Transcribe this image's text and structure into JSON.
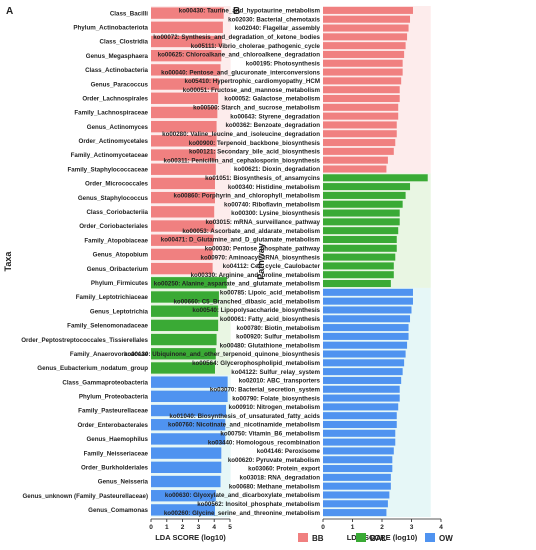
{
  "colors": {
    "BB": "#f08080",
    "BAL": "#3aaa35",
    "OW": "#4f93f0",
    "BB_bg": "#fdecec",
    "BAL_bg": "#e9f6e3",
    "OW_bg": "#e6f7f7",
    "axis": "#222222"
  },
  "legend": [
    {
      "name": "BB",
      "color": "#f08080"
    },
    {
      "name": "BAL",
      "color": "#3aaa35"
    },
    {
      "name": "OW",
      "color": "#4f93f0"
    }
  ],
  "chart_data": [
    {
      "panel_label": "A",
      "type": "bar",
      "orientation": "horizontal",
      "ylabel": "Taxa",
      "xlabel": "LDA SCORE (log10)",
      "xlim": [
        0,
        5
      ],
      "xticks": [
        "0",
        "1",
        "2",
        "3",
        "4",
        "5"
      ],
      "categories": [
        "Class_Bacilli",
        "Phylum_Actinobacteriota",
        "Class_Clostridia",
        "Genus_Megasphaera",
        "Class_Actinobacteria",
        "Genus_Paracoccus",
        "Order_Lachnospirales",
        "Family_Lachnospiraceae",
        "Genus_Actinomyces",
        "Order_Actinomycetales",
        "Family_Actinomycetaceae",
        "Family_Staphylococcaceae",
        "Order_Micrococcales",
        "Genus_Staphylococcus",
        "Class_Coriobacteriia",
        "Order_Coriobacteriales",
        "Family_Atopobiaceae",
        "Genus_Atopobium",
        "Genus_Oribacterium",
        "Phylum_Firmicutes",
        "Family_Leptotrichiaceae",
        "Genus_Leptotrichia",
        "Family_Selenomonadaceae",
        "Order_Peptostreptococcales_Tissierellales",
        "Family_Anaerovoracaceae",
        "Genus_Eubacterium_nodatum_group",
        "Class_Gammaproteobacteria",
        "Phylum_Proteobacteria",
        "Family_Pasteurellaceae",
        "Order_Enterobacterales",
        "Genus_Haemophilus",
        "Family_Neisseriaceae",
        "Order_Burkholderiales",
        "Genus_Neisseria",
        "Genus_unknown (Family_Pasteurellaceae)",
        "Genus_Comamonas"
      ],
      "groups": [
        "BB",
        "BB",
        "BB",
        "BB",
        "BB",
        "BB",
        "BB",
        "BB",
        "BB",
        "BB",
        "BB",
        "BB",
        "BB",
        "BB",
        "BB",
        "BB",
        "BB",
        "BB",
        "BB",
        "BAL",
        "BAL",
        "BAL",
        "BAL",
        "BAL",
        "BAL",
        "BAL",
        "OW",
        "OW",
        "OW",
        "OW",
        "OW",
        "OW",
        "OW",
        "OW",
        "OW",
        "OW"
      ],
      "values": [
        4.6,
        4.55,
        4.5,
        4.45,
        4.4,
        4.3,
        4.25,
        4.2,
        4.15,
        4.15,
        4.1,
        4.1,
        4.05,
        4.05,
        4.0,
        4.0,
        3.95,
        3.9,
        3.9,
        4.8,
        4.3,
        4.25,
        4.25,
        4.15,
        4.1,
        4.05,
        4.85,
        4.85,
        4.75,
        4.7,
        4.7,
        4.45,
        4.45,
        4.4,
        4.1,
        4.05
      ]
    },
    {
      "panel_label": "B",
      "type": "bar",
      "orientation": "horizontal",
      "ylabel": "Pathway",
      "xlabel": "LDA SCORE (log10)",
      "xlim": [
        0,
        4
      ],
      "xticks": [
        "0",
        "1",
        "2",
        "3",
        "4"
      ],
      "categories": [
        "ko00430: Taurine_and_hypotaurine_metabolism",
        "ko02030: Bacterial_chemotaxis",
        "ko02040: Flagellar_assembly",
        "ko00072: Synthesis_and_degradation_of_ketone_bodies",
        "ko05111: Vibrio_cholerae_pathogenic_cycle",
        "ko00625: Chloroalkane_and_chloroalkene_degradation",
        "ko00195: Photosynthesis",
        "ko00040: Pentose_and_glucuronate_interconversions",
        "ko05410: Hypertrophic_cardiomyopathy_HCM",
        "ko00051: Fructose_and_mannose_metabolism",
        "ko00052: Galactose_metabolism",
        "ko00500: Starch_and_sucrose_metabolism",
        "ko00643: Styrene_degradation",
        "ko00362: Benzoate_degradation",
        "ko00280: Valine_leucine_and_isoleucine_degradation",
        "ko00900: Terpenoid_backbone_biosynthesis",
        "ko00121: Secondary_bile_acid_biosynthesis",
        "ko00311: Penicillin_and_cephalosporin_biosynthesis",
        "ko00621: Dioxin_degradation",
        "ko01051: Biosynthesis_of_ansamycins",
        "ko00340: Histidine_metabolism",
        "ko00860: Porphyrin_and_chlorophyll_metabolism",
        "ko00740: Riboflavin_metabolism",
        "ko00300: Lysine_biosynthesis",
        "ko03015: mRNA_surveillance_pathway",
        "ko00053: Ascorbate_and_aldarate_metabolism",
        "ko00471: D_Glutamine_and_D_glutamate_metabolism",
        "ko00030: Pentose_phosphate_pathway",
        "ko00970: Aminoacyl_tRNA_biosynthesis",
        "ko04112: Cell_cycle_Caulobacter",
        "ko00330: Arginine_and_proline_metabolism",
        "ko00250: Alanine_aspartate_and_glutamate_metabolism",
        "ko00785: Lipoic_acid_metabolism",
        "ko00660: C5_Branched_dibasic_acid_metabolism",
        "ko00540: Lipopolysaccharide_biosynthesis",
        "ko00061: Fatty_acid_biosynthesis",
        "ko00780: Biotin_metabolism",
        "ko00920: Sulfur_metabolism",
        "ko00480: Glutathione_metabolism",
        "ko00130: Ubiquinone_and_other_terpenoid_quinone_biosynthesis",
        "ko00564: Glycerophospholipid_metabolism",
        "ko04122: Sulfur_relay_system",
        "ko02010: ABC_transporters",
        "ko03070: Bacterial_secretion_system",
        "ko00790: Folate_biosynthesis",
        "ko00910: Nitrogen_metabolism",
        "ko01040: Biosynthesis_of_unsaturated_fatty_acids",
        "ko00760: Nicotinate_and_nicotinamide_metabolism",
        "ko00750: Vitamin_B6_metabolism",
        "ko03440: Homologous_recombination",
        "ko04146: Peroxisome",
        "ko00620: Pyruvate_metabolism",
        "ko03060: Protein_export",
        "ko03018: RNA_degradation",
        "ko00680: Methane_metabolism",
        "ko00630: Glyoxylate_and_dicarboxylate_metabolism",
        "ko00562: Inositol_phosphate_metabolism",
        "ko00260: Glycine_serine_and_threonine_metabolism"
      ],
      "groups": [
        "BB",
        "BB",
        "BB",
        "BB",
        "BB",
        "BB",
        "BB",
        "BB",
        "BB",
        "BB",
        "BB",
        "BB",
        "BB",
        "BB",
        "BB",
        "BB",
        "BB",
        "BB",
        "BB",
        "BAL",
        "BAL",
        "BAL",
        "BAL",
        "BAL",
        "BAL",
        "BAL",
        "BAL",
        "BAL",
        "BAL",
        "BAL",
        "BAL",
        "BAL",
        "OW",
        "OW",
        "OW",
        "OW",
        "OW",
        "OW",
        "OW",
        "OW",
        "OW",
        "OW",
        "OW",
        "OW",
        "OW",
        "OW",
        "OW",
        "OW",
        "OW",
        "OW",
        "OW",
        "OW",
        "OW",
        "OW",
        "OW",
        "OW",
        "OW",
        "OW"
      ],
      "values": [
        3.05,
        2.95,
        2.9,
        2.85,
        2.8,
        2.75,
        2.7,
        2.7,
        2.65,
        2.6,
        2.6,
        2.55,
        2.55,
        2.5,
        2.5,
        2.45,
        2.4,
        2.2,
        2.15,
        3.55,
        2.95,
        2.8,
        2.7,
        2.6,
        2.6,
        2.55,
        2.5,
        2.5,
        2.45,
        2.4,
        2.4,
        2.3,
        3.05,
        3.05,
        3.0,
        2.95,
        2.9,
        2.9,
        2.85,
        2.8,
        2.75,
        2.7,
        2.65,
        2.6,
        2.6,
        2.55,
        2.5,
        2.5,
        2.45,
        2.45,
        2.4,
        2.35,
        2.35,
        2.3,
        2.3,
        2.25,
        2.2,
        2.15
      ]
    }
  ]
}
